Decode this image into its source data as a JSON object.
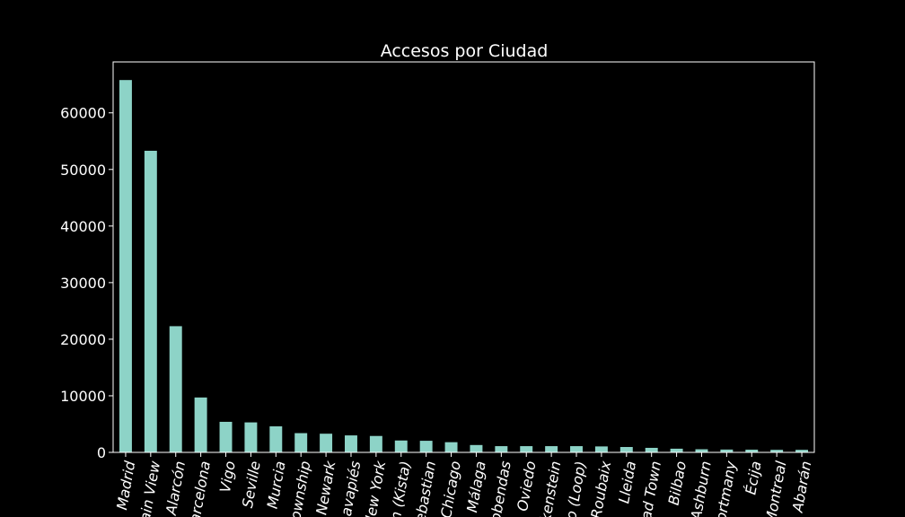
{
  "chart_data": {
    "type": "bar",
    "title": "Accesos por Ciudad",
    "xlabel": "",
    "ylabel": "",
    "ylim": [
      0,
      69000
    ],
    "yticks": [
      0,
      10000,
      20000,
      30000,
      40000,
      50000,
      60000
    ],
    "ytick_labels": [
      "0",
      "10000",
      "20000",
      "30000",
      "40000",
      "50000",
      "60000"
    ],
    "categories": [
      "Madrid",
      "ain View",
      "Alarcón",
      "arcelona",
      "Vigo",
      "Seville",
      "Murcia",
      "ownship",
      "Newark",
      "avapiés",
      "New York",
      "n (Kista)",
      "ebastian",
      "Chicago",
      "Málaga",
      "obendas",
      "Oviedo",
      "kenstein",
      "o (Loop)",
      "Roubaix",
      "Lleida",
      "ad Town",
      "Bilbao",
      "Ashburn",
      "ortmany",
      "Écija",
      "Montreal",
      "Abarán"
    ],
    "values": [
      65800,
      53300,
      22300,
      9700,
      5400,
      5300,
      4600,
      3400,
      3300,
      3000,
      2900,
      2100,
      2050,
      1800,
      1300,
      1100,
      1100,
      1100,
      1100,
      1050,
      950,
      800,
      650,
      550,
      500,
      480,
      450,
      450
    ],
    "grid": false,
    "legend": "none",
    "colors": {
      "background": "#000000",
      "bar": "#8dd3c7",
      "text": "#ffffff",
      "axis": "#ffffff"
    }
  }
}
